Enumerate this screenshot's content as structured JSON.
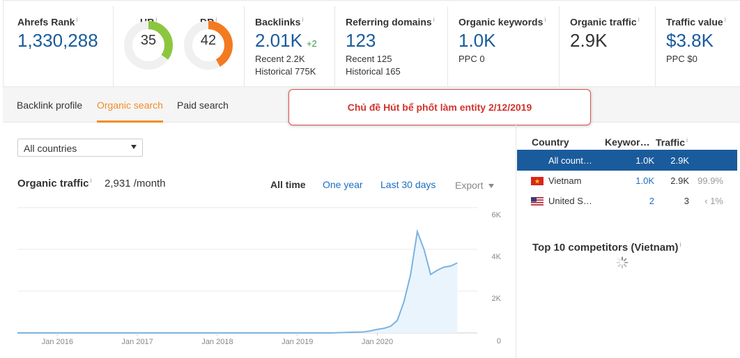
{
  "metrics": {
    "ahrefs_rank": {
      "label": "Ahrefs Rank",
      "value": "1,330,288"
    },
    "ur": {
      "label": "UR",
      "value": "35",
      "score": 35,
      "color": "#8cc63f"
    },
    "dr": {
      "label": "DR",
      "value": "42",
      "score": 42,
      "color": "#f47a20"
    },
    "backlinks": {
      "label": "Backlinks",
      "value": "2.01K",
      "delta": "+2",
      "recent": "Recent 2.2K",
      "historical": "Historical 775K"
    },
    "referring_domains": {
      "label": "Referring domains",
      "value": "123",
      "recent": "Recent 125",
      "historical": "Historical 165"
    },
    "organic_keywords": {
      "label": "Organic keywords",
      "value": "1.0K",
      "ppc": "PPC 0"
    },
    "organic_traffic": {
      "label": "Organic traffic",
      "value": "2.9K"
    },
    "traffic_value": {
      "label": "Traffic value",
      "value": "$3.8K",
      "ppc": "PPC $0"
    }
  },
  "tabs": [
    {
      "label": "Backlink profile",
      "active": false
    },
    {
      "label": "Organic search",
      "active": true
    },
    {
      "label": "Paid search",
      "active": false
    }
  ],
  "callout": "Chủ đề Hút bể phốt làm entity 2/12/2019",
  "country_select": {
    "value": "All countries"
  },
  "organic_traffic_panel": {
    "title": "Organic traffic",
    "value": "2,931 /month",
    "ranges": [
      "All time",
      "One year",
      "Last 30 days"
    ],
    "active_range": "All time",
    "export_label": "Export"
  },
  "chart_data": {
    "type": "area",
    "x_tick_labels": [
      "Jan 2016",
      "Jan 2017",
      "Jan 2018",
      "Jan 2019",
      "Jan 2020"
    ],
    "y_tick_labels": [
      "6K",
      "4K",
      "2K",
      "0"
    ],
    "ylim": [
      0,
      6000
    ],
    "grid": true,
    "axis_position": "right",
    "line_color": "#7ab3e0",
    "fill_color": "#eaf4fd",
    "series": [
      {
        "points": [
          [
            "2015-07",
            0
          ],
          [
            "2016-01",
            0
          ],
          [
            "2017-01",
            0
          ],
          [
            "2018-01",
            0
          ],
          [
            "2019-01",
            0
          ],
          [
            "2019-06",
            0
          ],
          [
            "2019-11",
            50
          ],
          [
            "2019-12",
            100
          ],
          [
            "2020-01",
            170
          ],
          [
            "2020-02",
            220
          ],
          [
            "2020-03",
            320
          ],
          [
            "2020-04",
            600
          ],
          [
            "2020-05",
            1500
          ],
          [
            "2020-06",
            2800
          ],
          [
            "2020-07",
            4850
          ],
          [
            "2020-08",
            4000
          ],
          [
            "2020-09",
            2800
          ],
          [
            "2020-10",
            3000
          ],
          [
            "2020-11",
            3150
          ],
          [
            "2020-12",
            3200
          ],
          [
            "2021-01",
            3350
          ]
        ]
      }
    ]
  },
  "countries_table": {
    "headers": {
      "country": "Country",
      "keywords": "Keywor…",
      "traffic": "Traffic"
    },
    "rows": [
      {
        "country": "All count…",
        "keywords": "1.0K",
        "traffic": "2.9K",
        "share": "",
        "flag": "none",
        "selected": true
      },
      {
        "country": "Vietnam",
        "keywords": "1.0K",
        "traffic": "2.9K",
        "share": "99.9%",
        "flag": "vn-flag",
        "selected": false
      },
      {
        "country": "United S…",
        "keywords": "2",
        "traffic": "3",
        "share": "‹ 1%",
        "flag": "us-flag",
        "selected": false
      }
    ]
  },
  "competitors": {
    "title": "Top 10 competitors (Vietnam)"
  }
}
